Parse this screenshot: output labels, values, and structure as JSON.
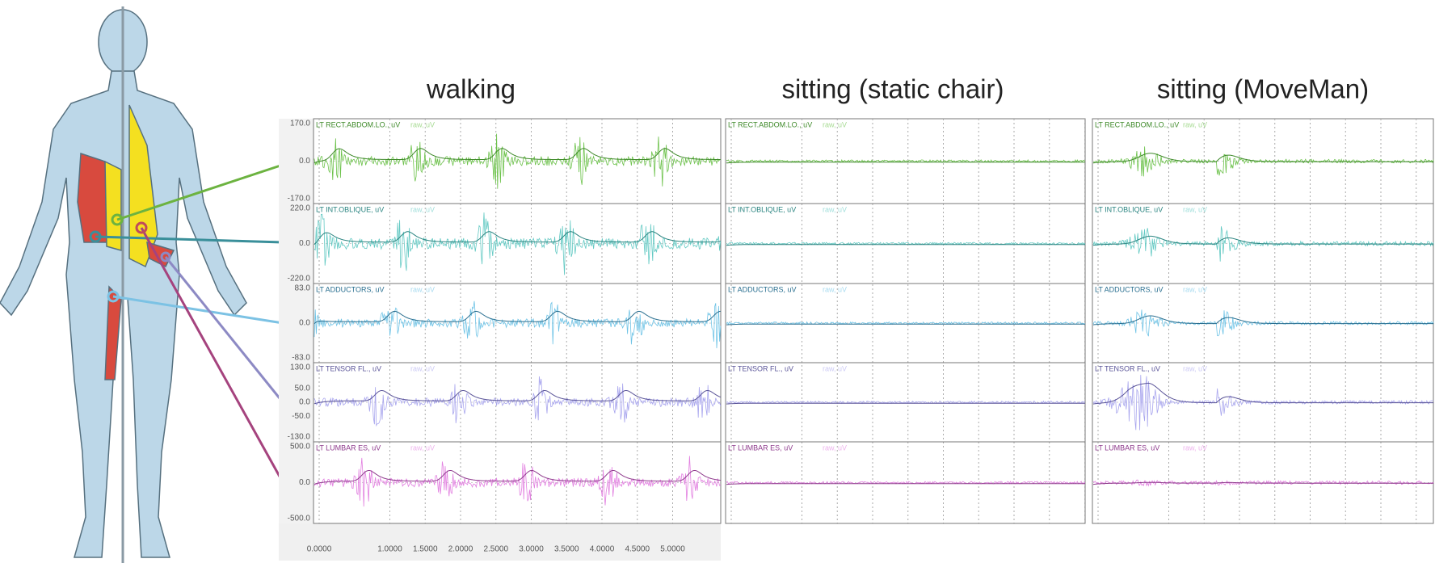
{
  "panels": [
    {
      "title": "walking"
    },
    {
      "title": "sitting (static chair)"
    },
    {
      "title": "sitting (MoveMan)"
    }
  ],
  "raw_label": "raw, uV",
  "channels": [
    {
      "label": "LT RECT.ABDOM.LO., uV",
      "color": "#6cc24a",
      "envelope_color": "#3f8a2a",
      "yticks": [
        "170.0",
        "0.0",
        "-170.0"
      ]
    },
    {
      "label": "LT INT.OBLIQUE, uV",
      "color": "#62c9c3",
      "envelope_color": "#2a8480",
      "yticks": [
        "220.0",
        "0.0",
        "-220.0"
      ]
    },
    {
      "label": "LT ADDUCTORS, uV",
      "color": "#6ec3e6",
      "envelope_color": "#2a6f90",
      "yticks": [
        "83.0",
        "0.0",
        "-83.0"
      ]
    },
    {
      "label": "LT TENSOR FL., uV",
      "color": "#a9a6ee",
      "envelope_color": "#5a5498",
      "yticks": [
        "130.0",
        "50.0",
        "0.0",
        "-50.0",
        "-130.0"
      ]
    },
    {
      "label": "LT LUMBAR ES, uV",
      "color": "#e27fe0",
      "envelope_color": "#8e3a8c",
      "yticks": [
        "500.0",
        "0.0",
        "-500.0"
      ]
    }
  ],
  "xticks": [
    "0.0000",
    "1.0000",
    "1.5000",
    "2.0000",
    "2.5000",
    "3.0000",
    "3.5000",
    "4.0000",
    "4.5000",
    "5.0000"
  ]
}
